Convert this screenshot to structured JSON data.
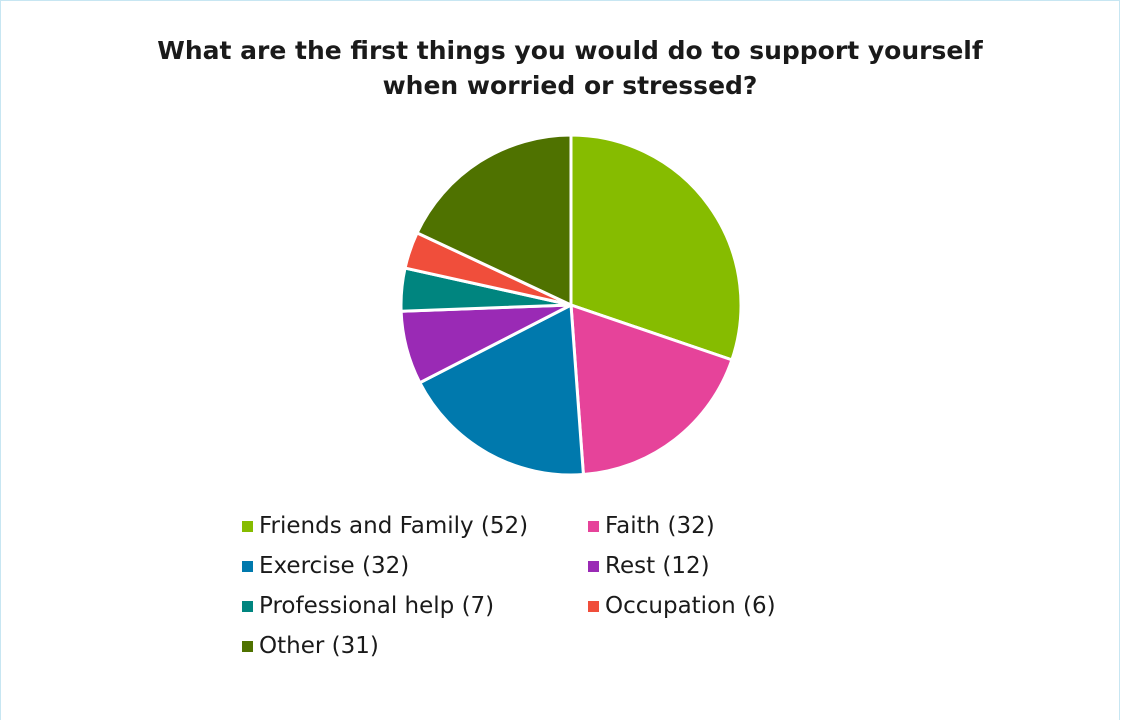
{
  "chart_data": {
    "type": "pie",
    "title": "What are the first things you would do to support yourself when worried or stressed?",
    "title_lines": [
      "What are the first things you would do to support yourself",
      "when worried or stressed?"
    ],
    "start_angle": "12 o'clock",
    "direction": "clockwise",
    "legend_position": "bottom",
    "slices": [
      {
        "label": "Friends and Family (52)",
        "value": 52,
        "color": "#86bc00"
      },
      {
        "label": "Faith (32)",
        "value": 32,
        "color": "#e6439a"
      },
      {
        "label": "Exercise (32)",
        "value": 32,
        "color": "#0079ad"
      },
      {
        "label": "Rest (12)",
        "value": 12,
        "color": "#9a2ab5"
      },
      {
        "label": "Professional help (7)",
        "value": 7,
        "color": "#00857f"
      },
      {
        "label": "Occupation (6)",
        "value": 6,
        "color": "#f04e3b"
      },
      {
        "label": "Other (31)",
        "value": 31,
        "color": "#4f7200"
      }
    ]
  }
}
